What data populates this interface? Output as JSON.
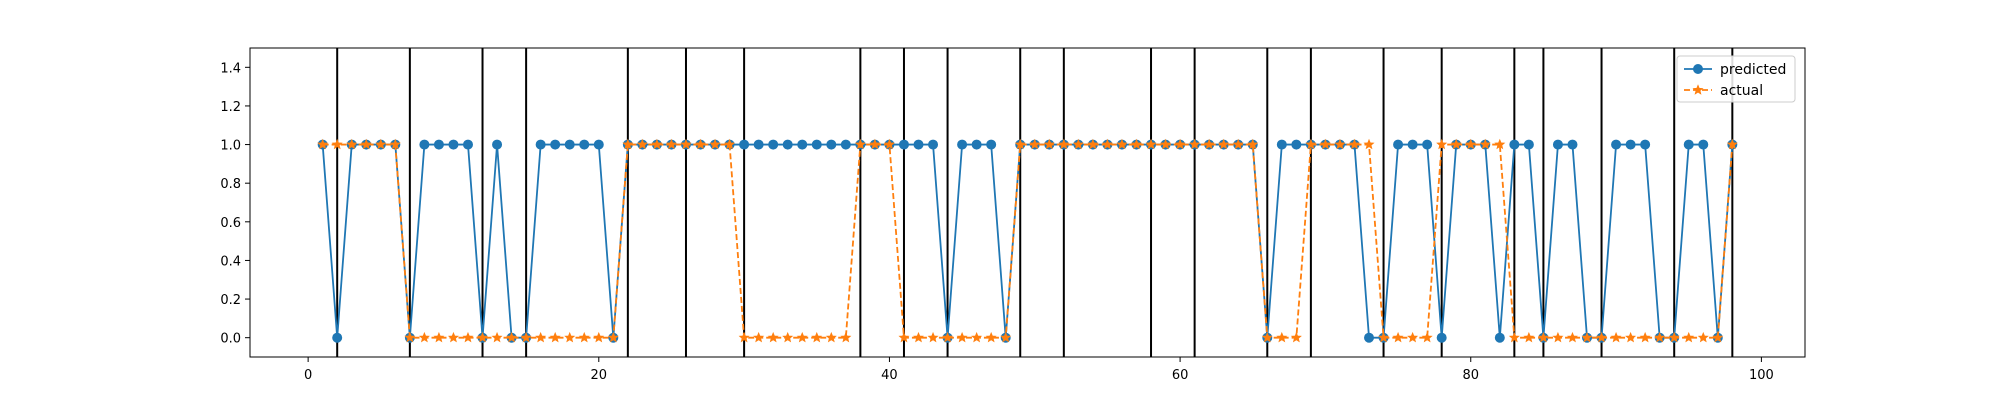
{
  "chart_data": {
    "type": "line",
    "title": "",
    "xlabel": "",
    "ylabel": "",
    "xlim": [
      -4,
      103
    ],
    "ylim": [
      -0.1,
      1.5
    ],
    "xticks": [
      0,
      20,
      40,
      60,
      80,
      100
    ],
    "yticks": [
      0.0,
      0.2,
      0.4,
      0.6,
      0.8,
      1.0,
      1.2,
      1.4
    ],
    "xtick_labels": [
      "0",
      "20",
      "40",
      "60",
      "80",
      "100"
    ],
    "ytick_labels": [
      "0.0",
      "0.2",
      "0.4",
      "0.6",
      "0.8",
      "1.0",
      "1.2",
      "1.4"
    ],
    "grid": false,
    "legend_position": "top-right",
    "x": [
      1,
      2,
      3,
      4,
      5,
      6,
      7,
      8,
      9,
      10,
      11,
      12,
      13,
      14,
      15,
      16,
      17,
      18,
      19,
      20,
      21,
      22,
      23,
      24,
      25,
      26,
      27,
      28,
      29,
      30,
      31,
      32,
      33,
      34,
      35,
      36,
      37,
      38,
      39,
      40,
      41,
      42,
      43,
      44,
      45,
      46,
      47,
      48,
      49,
      50,
      51,
      52,
      53,
      54,
      55,
      56,
      57,
      58,
      59,
      60,
      61,
      62,
      63,
      64,
      65,
      66,
      67,
      68,
      69,
      70,
      71,
      72,
      73,
      74,
      75,
      76,
      77,
      78,
      79,
      80,
      81,
      82,
      83,
      84,
      85,
      86,
      87,
      88,
      89,
      90,
      91,
      92,
      93,
      94,
      95,
      96,
      97,
      98
    ],
    "series": [
      {
        "name": "predicted",
        "color": "#1f77b4",
        "linestyle": "solid",
        "marker": "circle",
        "values": [
          1,
          0,
          1,
          1,
          1,
          1,
          0,
          1,
          1,
          1,
          1,
          0,
          1,
          0,
          0,
          1,
          1,
          1,
          1,
          1,
          0,
          1,
          1,
          1,
          1,
          1,
          1,
          1,
          1,
          1,
          1,
          1,
          1,
          1,
          1,
          1,
          1,
          1,
          1,
          1,
          1,
          1,
          1,
          0,
          1,
          1,
          1,
          0,
          1,
          1,
          1,
          1,
          1,
          1,
          1,
          1,
          1,
          1,
          1,
          1,
          1,
          1,
          1,
          1,
          1,
          0,
          1,
          1,
          1,
          1,
          1,
          1,
          0,
          0,
          1,
          1,
          1,
          0,
          1,
          1,
          1,
          0,
          1,
          1,
          0,
          1,
          1,
          0,
          0,
          1,
          1,
          1,
          0,
          0,
          1,
          1,
          0,
          1
        ]
      },
      {
        "name": "actual",
        "color": "#ff7f0e",
        "linestyle": "dashed",
        "marker": "star",
        "values": [
          1,
          1,
          1,
          1,
          1,
          1,
          0,
          0,
          0,
          0,
          0,
          0,
          0,
          0,
          0,
          0,
          0,
          0,
          0,
          0,
          0,
          1,
          1,
          1,
          1,
          1,
          1,
          1,
          1,
          0,
          0,
          0,
          0,
          0,
          0,
          0,
          0,
          1,
          1,
          1,
          0,
          0,
          0,
          0,
          0,
          0,
          0,
          0,
          1,
          1,
          1,
          1,
          1,
          1,
          1,
          1,
          1,
          1,
          1,
          1,
          1,
          1,
          1,
          1,
          1,
          0,
          0,
          0,
          1,
          1,
          1,
          1,
          1,
          0,
          0,
          0,
          0,
          1,
          1,
          1,
          1,
          1,
          0,
          0,
          0,
          0,
          0,
          0,
          0,
          0,
          0,
          0,
          0,
          0,
          0,
          0,
          0,
          1
        ]
      }
    ],
    "vertical_lines": [
      2,
      7,
      12,
      15,
      22,
      26,
      30,
      38,
      41,
      44,
      49,
      52,
      58,
      61,
      66,
      69,
      74,
      78,
      83,
      85,
      89,
      94,
      98
    ]
  }
}
